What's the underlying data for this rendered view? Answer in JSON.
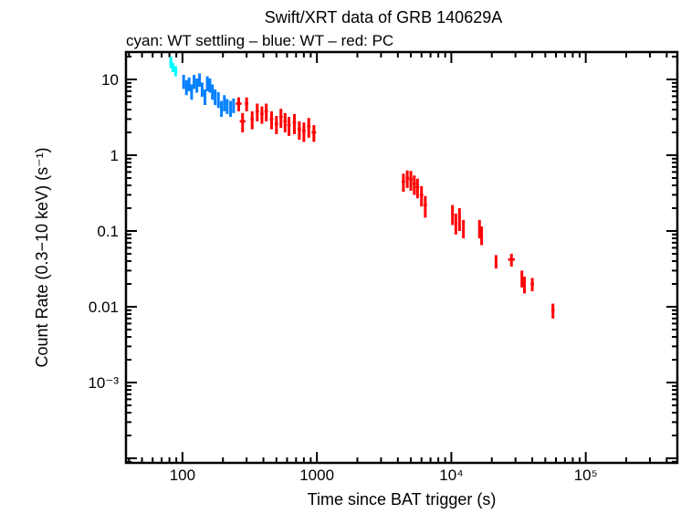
{
  "chart_data": {
    "type": "scatter",
    "title": "Swift/XRT data of GRB 140629A",
    "subtitle": "cyan: WT settling – blue: WT – red: PC",
    "xlabel": "Time since BAT trigger (s)",
    "ylabel": "Count Rate (0.3−10 keV) (s⁻¹)",
    "xscale": "log",
    "yscale": "log",
    "xlim": [
      38,
      480000
    ],
    "ylim": [
      8.7e-05,
      23
    ],
    "xticks": [
      {
        "v": 100,
        "l": "100"
      },
      {
        "v": 1000,
        "l": "1000"
      },
      {
        "v": 10000,
        "l": "10⁴"
      },
      {
        "v": 100000,
        "l": "10⁵"
      }
    ],
    "yticks": [
      {
        "v": 10,
        "l": "10"
      },
      {
        "v": 1,
        "l": "1"
      },
      {
        "v": 0.1,
        "l": "0.1"
      },
      {
        "v": 0.01,
        "l": "0.01"
      },
      {
        "v": 0.001,
        "l": "10⁻³"
      }
    ],
    "series": [
      {
        "name": "WT settling",
        "color": "#00ffff",
        "points": [
          [
            82,
            17,
            1.03,
            3
          ],
          [
            85,
            14.5,
            1.02,
            2
          ],
          [
            89,
            13,
            1.03,
            2
          ]
        ]
      },
      {
        "name": "WT",
        "color": "#0080ff",
        "points": [
          [
            102,
            9.5,
            1.02,
            2
          ],
          [
            107,
            8,
            1.02,
            1.8
          ],
          [
            112,
            8.8,
            1.02,
            1.8
          ],
          [
            117,
            7,
            1.02,
            1.6
          ],
          [
            122,
            9.5,
            1.02,
            2
          ],
          [
            128,
            8.5,
            1.02,
            1.8
          ],
          [
            134,
            10,
            1.02,
            2
          ],
          [
            140,
            7.5,
            1.02,
            1.6
          ],
          [
            147,
            6,
            1.02,
            1.4
          ],
          [
            153,
            9,
            1.02,
            2
          ],
          [
            160,
            8.5,
            1.02,
            1.8
          ],
          [
            167,
            7,
            1.02,
            1.6
          ],
          [
            175,
            6,
            1.02,
            1.4
          ],
          [
            185,
            5.5,
            1.02,
            1.3
          ],
          [
            195,
            4.2,
            1.02,
            1.0
          ],
          [
            205,
            5,
            1.02,
            1.2
          ],
          [
            215,
            4.5,
            1.02,
            1.0
          ],
          [
            228,
            4.2,
            1.02,
            1.0
          ],
          [
            240,
            4.6,
            1.02,
            1.0
          ]
        ]
      },
      {
        "name": "PC",
        "color": "#ff0000",
        "points": [
          [
            262,
            4.8,
            1.05,
            1.0
          ],
          [
            280,
            2.8,
            1.05,
            0.8
          ],
          [
            300,
            4.8,
            1.03,
            1.0
          ],
          [
            330,
            3,
            1.03,
            0.8
          ],
          [
            360,
            3.8,
            1.03,
            1.0
          ],
          [
            390,
            3.5,
            1.03,
            0.9
          ],
          [
            420,
            3.8,
            1.03,
            1.0
          ],
          [
            460,
            3,
            1.03,
            0.8
          ],
          [
            500,
            2.6,
            1.03,
            0.7
          ],
          [
            540,
            3.2,
            1.03,
            0.9
          ],
          [
            580,
            2.8,
            1.03,
            0.8
          ],
          [
            620,
            2.5,
            1.03,
            0.7
          ],
          [
            680,
            2.7,
            1.03,
            0.8
          ],
          [
            740,
            2.2,
            1.03,
            0.6
          ],
          [
            800,
            2.1,
            1.03,
            0.6
          ],
          [
            870,
            2.4,
            1.03,
            0.7
          ],
          [
            950,
            2,
            1.04,
            0.5
          ],
          [
            4400,
            0.45,
            1.03,
            0.12
          ],
          [
            4700,
            0.5,
            1.03,
            0.13
          ],
          [
            5000,
            0.48,
            1.03,
            0.14
          ],
          [
            5300,
            0.42,
            1.03,
            0.12
          ],
          [
            5600,
            0.38,
            1.03,
            0.11
          ],
          [
            6000,
            0.3,
            1.03,
            0.09
          ],
          [
            6400,
            0.22,
            1.03,
            0.07
          ],
          [
            10200,
            0.17,
            1.02,
            0.05
          ],
          [
            10800,
            0.13,
            1.02,
            0.04
          ],
          [
            11500,
            0.15,
            1.02,
            0.05
          ],
          [
            12300,
            0.11,
            1.02,
            0.03
          ],
          [
            16200,
            0.11,
            1.02,
            0.03
          ],
          [
            16800,
            0.09,
            1.02,
            0.025
          ],
          [
            21500,
            0.04,
            1.02,
            0.008
          ],
          [
            28000,
            0.042,
            1.06,
            0.008
          ],
          [
            33500,
            0.024,
            1.02,
            0.006
          ],
          [
            35000,
            0.02,
            1.02,
            0.005
          ],
          [
            40000,
            0.02,
            1.03,
            0.004
          ],
          [
            57000,
            0.009,
            1.03,
            0.002
          ]
        ]
      }
    ]
  }
}
